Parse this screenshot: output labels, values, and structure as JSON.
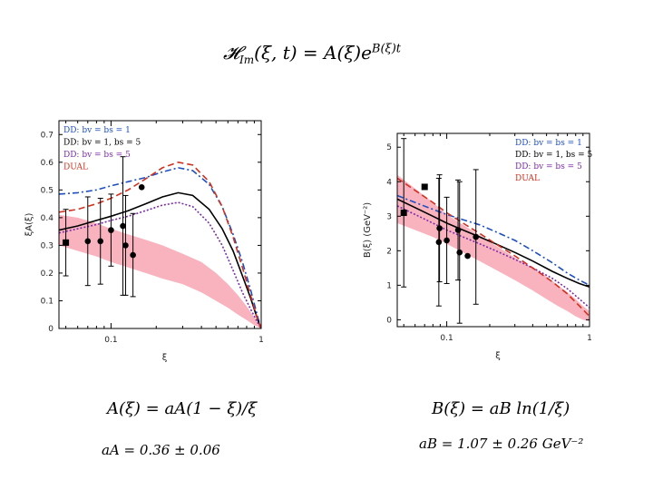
{
  "formula": {
    "main": "𝓗Im(ξ, t) = A(ξ)e^B(ξ)t",
    "main_lhs": "𝓗",
    "main_sub": "Im",
    "main_args": "(ξ, t) = A(ξ)e",
    "main_exp": "B(ξ)t",
    "a_def": "A(ξ)  =  aA(1 − ξ)/ξ",
    "b_def": "B(ξ)  =  aB ln(1/ξ)",
    "a_param": "aA = 0.36 ± 0.06",
    "b_param": "aB = 1.07 ± 0.26 GeV⁻²"
  },
  "colors": {
    "band": "#f7a6b4",
    "dd1": "#1f4fbf",
    "dd2": "#000000",
    "dd3": "#7a2ca8",
    "dual": "#d0311f"
  },
  "chart_data": [
    {
      "type": "line",
      "name": "xiA",
      "xscale": "log",
      "xlim": [
        0.045,
        1
      ],
      "ylim": [
        0,
        0.75
      ],
      "xlabel": "ξ",
      "ylabel": "ξA(ξ)",
      "xticks": [
        {
          "v": 0.1,
          "label": "0.1"
        },
        {
          "v": 1,
          "label": "1"
        }
      ],
      "yticks": [
        {
          "v": 0,
          "label": "0"
        },
        {
          "v": 0.1,
          "label": "0.1"
        },
        {
          "v": 0.2,
          "label": "0.2"
        },
        {
          "v": 0.3,
          "label": "0.3"
        },
        {
          "v": 0.4,
          "label": "0.4"
        },
        {
          "v": 0.5,
          "label": "0.5"
        },
        {
          "v": 0.6,
          "label": "0.6"
        },
        {
          "v": 0.7,
          "label": "0.7"
        }
      ],
      "legend": [
        {
          "label": "DD: bv = bs = 1",
          "color": "#1f4fbf",
          "dash": "7,3,2,3"
        },
        {
          "label": "DD: bv = 1, bs = 5",
          "color": "#000000",
          "dash": ""
        },
        {
          "label": "DD: bv = bs = 5",
          "color": "#7a2ca8",
          "dash": "2,2"
        },
        {
          "label": "DUAL",
          "color": "#d0311f",
          "dash": "7,4"
        }
      ],
      "band": {
        "x": [
          0.045,
          0.06,
          0.08,
          0.1,
          0.13,
          0.17,
          0.22,
          0.3,
          0.4,
          0.5,
          0.6,
          0.7,
          0.8,
          0.9,
          1.0
        ],
        "upper": [
          0.41,
          0.4,
          0.38,
          0.36,
          0.34,
          0.32,
          0.3,
          0.27,
          0.24,
          0.2,
          0.16,
          0.12,
          0.08,
          0.04,
          0.0
        ],
        "lower": [
          0.3,
          0.28,
          0.26,
          0.24,
          0.22,
          0.2,
          0.18,
          0.16,
          0.13,
          0.1,
          0.075,
          0.05,
          0.03,
          0.012,
          0.0
        ]
      },
      "series": [
        {
          "name": "DD: bv = bs = 1",
          "color": "#1f4fbf",
          "dash": "7,3,2,3",
          "x": [
            0.045,
            0.06,
            0.08,
            0.1,
            0.13,
            0.17,
            0.22,
            0.28,
            0.35,
            0.45,
            0.55,
            0.65,
            0.75,
            0.85,
            0.95,
            1.0
          ],
          "y": [
            0.485,
            0.49,
            0.5,
            0.515,
            0.53,
            0.545,
            0.565,
            0.58,
            0.57,
            0.52,
            0.44,
            0.34,
            0.24,
            0.14,
            0.04,
            0.0
          ]
        },
        {
          "name": "DD: bv = 1, bs = 5",
          "color": "#000000",
          "dash": "",
          "x": [
            0.045,
            0.06,
            0.08,
            0.1,
            0.13,
            0.17,
            0.22,
            0.28,
            0.35,
            0.45,
            0.55,
            0.65,
            0.75,
            0.85,
            0.95,
            1.0
          ],
          "y": [
            0.355,
            0.37,
            0.39,
            0.405,
            0.425,
            0.45,
            0.475,
            0.49,
            0.48,
            0.43,
            0.36,
            0.28,
            0.19,
            0.11,
            0.03,
            0.0
          ]
        },
        {
          "name": "DD: bv = bs = 5",
          "color": "#7a2ca8",
          "dash": "2,2",
          "x": [
            0.045,
            0.06,
            0.08,
            0.1,
            0.13,
            0.17,
            0.22,
            0.28,
            0.35,
            0.45,
            0.55,
            0.65,
            0.75,
            0.85,
            0.95,
            1.0
          ],
          "y": [
            0.345,
            0.36,
            0.375,
            0.39,
            0.405,
            0.425,
            0.445,
            0.455,
            0.44,
            0.38,
            0.3,
            0.21,
            0.13,
            0.07,
            0.02,
            0.0
          ]
        },
        {
          "name": "DUAL",
          "color": "#d0311f",
          "dash": "7,4",
          "x": [
            0.045,
            0.06,
            0.08,
            0.1,
            0.13,
            0.17,
            0.22,
            0.28,
            0.35,
            0.45,
            0.55,
            0.65,
            0.75,
            0.85,
            0.95,
            1.0
          ],
          "y": [
            0.42,
            0.43,
            0.45,
            0.47,
            0.5,
            0.54,
            0.58,
            0.6,
            0.59,
            0.53,
            0.44,
            0.33,
            0.22,
            0.12,
            0.03,
            0.0
          ]
        }
      ],
      "points": [
        {
          "x": 0.05,
          "y": 0.31,
          "err": 0.12,
          "marker": "square"
        },
        {
          "x": 0.07,
          "y": 0.315,
          "err": 0.16,
          "marker": "circle"
        },
        {
          "x": 0.085,
          "y": 0.315,
          "err": 0.155,
          "marker": "circle"
        },
        {
          "x": 0.1,
          "y": 0.355,
          "err": 0.13,
          "marker": "circle"
        },
        {
          "x": 0.12,
          "y": 0.37,
          "err": 0.25,
          "marker": "circle"
        },
        {
          "x": 0.125,
          "y": 0.3,
          "err": 0.18,
          "marker": "circle"
        },
        {
          "x": 0.14,
          "y": 0.265,
          "err": 0.15,
          "marker": "circle"
        },
        {
          "x": 0.16,
          "y": 0.51,
          "err": 0,
          "marker": "circle"
        }
      ]
    },
    {
      "type": "line",
      "name": "B",
      "xscale": "log",
      "xlim": [
        0.045,
        1
      ],
      "ylim": [
        -0.2,
        5.4
      ],
      "xlabel": "ξ",
      "ylabel": "B(ξ)  (GeV⁻²)",
      "xticks": [
        {
          "v": 0.1,
          "label": "0.1"
        },
        {
          "v": 1,
          "label": "1"
        }
      ],
      "yticks": [
        {
          "v": 0,
          "label": "0"
        },
        {
          "v": 1,
          "label": "1"
        },
        {
          "v": 2,
          "label": "2"
        },
        {
          "v": 3,
          "label": "3"
        },
        {
          "v": 4,
          "label": "4"
        },
        {
          "v": 5,
          "label": "5"
        }
      ],
      "legend": [
        {
          "label": "DD: bv = bs = 1",
          "color": "#1f4fbf",
          "dash": "7,3,2,3"
        },
        {
          "label": "DD: bv = 1, bs = 5",
          "color": "#000000",
          "dash": ""
        },
        {
          "label": "DD: bv = bs = 5",
          "color": "#7a2ca8",
          "dash": "2,2"
        },
        {
          "label": "DUAL",
          "color": "#d0311f",
          "dash": "7,4"
        }
      ],
      "band": {
        "x": [
          0.045,
          0.06,
          0.08,
          0.1,
          0.13,
          0.17,
          0.22,
          0.3,
          0.4,
          0.5,
          0.6,
          0.7,
          0.8,
          0.9,
          1.0
        ],
        "upper": [
          4.2,
          3.8,
          3.4,
          3.05,
          2.75,
          2.45,
          2.15,
          1.8,
          1.5,
          1.25,
          1.0,
          0.8,
          0.6,
          0.4,
          0.25
        ],
        "lower": [
          2.8,
          2.6,
          2.4,
          2.2,
          1.95,
          1.7,
          1.45,
          1.15,
          0.85,
          0.6,
          0.4,
          0.25,
          0.1,
          0.0,
          -0.05
        ]
      },
      "series": [
        {
          "name": "DD: bv = bs = 1",
          "color": "#1f4fbf",
          "dash": "7,3,2,3",
          "x": [
            0.045,
            0.06,
            0.08,
            0.1,
            0.13,
            0.17,
            0.22,
            0.3,
            0.4,
            0.55,
            0.7,
            0.85,
            1.0
          ],
          "y": [
            3.6,
            3.4,
            3.2,
            3.05,
            2.9,
            2.75,
            2.55,
            2.3,
            2.0,
            1.65,
            1.35,
            1.15,
            1.0
          ]
        },
        {
          "name": "DD: bv = 1, bs = 5",
          "color": "#000000",
          "dash": "",
          "x": [
            0.045,
            0.06,
            0.08,
            0.1,
            0.13,
            0.17,
            0.22,
            0.3,
            0.4,
            0.55,
            0.7,
            0.85,
            1.0
          ],
          "y": [
            3.5,
            3.25,
            3.0,
            2.8,
            2.6,
            2.4,
            2.2,
            1.95,
            1.7,
            1.4,
            1.2,
            1.05,
            0.95
          ]
        },
        {
          "name": "DD: bv = bs = 5",
          "color": "#7a2ca8",
          "dash": "2,2",
          "x": [
            0.045,
            0.06,
            0.08,
            0.1,
            0.13,
            0.17,
            0.22,
            0.3,
            0.4,
            0.55,
            0.7,
            0.85,
            1.0
          ],
          "y": [
            3.3,
            3.05,
            2.8,
            2.6,
            2.4,
            2.2,
            2.0,
            1.75,
            1.5,
            1.2,
            0.9,
            0.6,
            0.35
          ]
        },
        {
          "name": "DUAL",
          "color": "#d0311f",
          "dash": "7,4",
          "x": [
            0.045,
            0.06,
            0.08,
            0.1,
            0.13,
            0.17,
            0.22,
            0.3,
            0.4,
            0.55,
            0.7,
            0.85,
            1.0
          ],
          "y": [
            4.1,
            3.75,
            3.4,
            3.1,
            2.8,
            2.5,
            2.2,
            1.85,
            1.5,
            1.1,
            0.75,
            0.4,
            0.1
          ]
        }
      ],
      "points": [
        {
          "x": 0.05,
          "y": 3.1,
          "err": 2.15,
          "marker": "square"
        },
        {
          "x": 0.07,
          "y": 3.85,
          "err": 0,
          "marker": "square"
        },
        {
          "x": 0.088,
          "y": 2.25,
          "err": 1.85,
          "marker": "circle"
        },
        {
          "x": 0.089,
          "y": 2.65,
          "err": 1.55,
          "marker": "circle"
        },
        {
          "x": 0.1,
          "y": 2.3,
          "err": 1.25,
          "marker": "circle"
        },
        {
          "x": 0.12,
          "y": 2.6,
          "err": 1.45,
          "marker": "circle"
        },
        {
          "x": 0.123,
          "y": 1.95,
          "err": 2.05,
          "marker": "circle"
        },
        {
          "x": 0.14,
          "y": 1.85,
          "err": 0,
          "marker": "circle"
        },
        {
          "x": 0.16,
          "y": 2.4,
          "err": 1.95,
          "marker": "circle"
        }
      ]
    }
  ]
}
